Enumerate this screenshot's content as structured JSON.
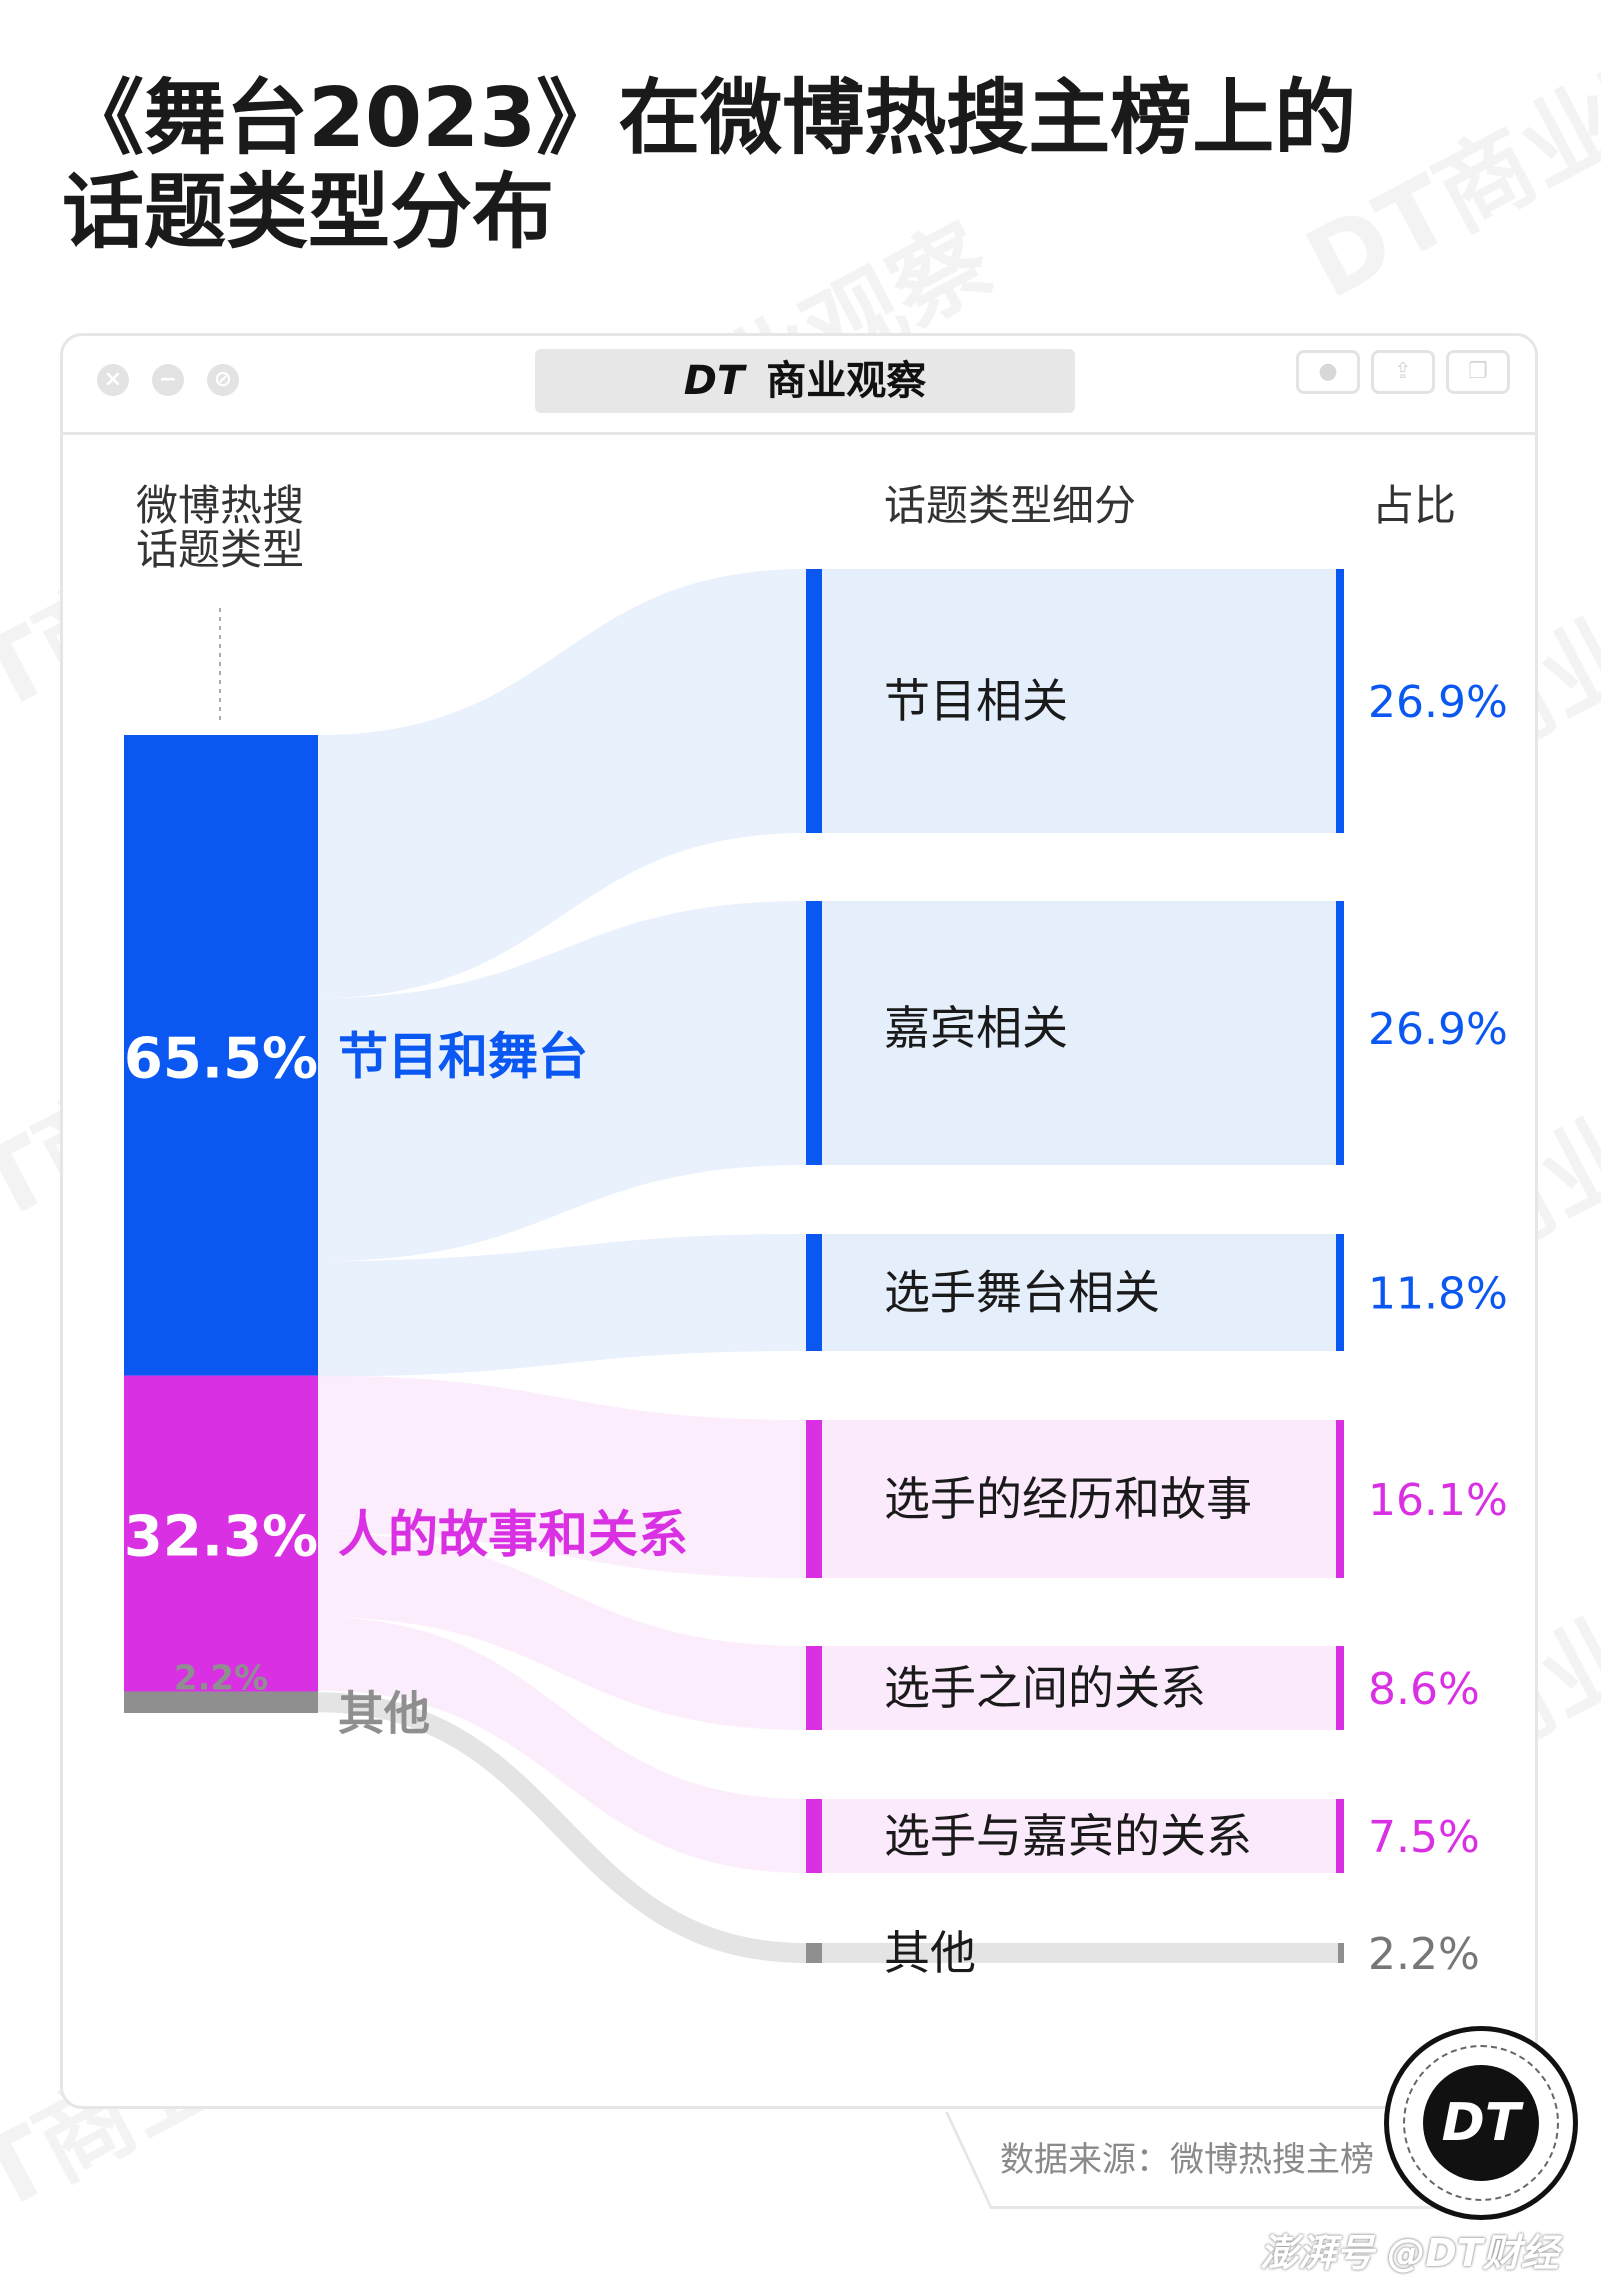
{
  "title": {
    "line1": "《舞台2023》在微博热搜主榜上的",
    "line2": "话题类型分布"
  },
  "brand": {
    "logo": "DT",
    "name": "商业观察"
  },
  "window_controls": [
    "close-icon",
    "minimize-icon",
    "maximize-icon"
  ],
  "toolbar_icons": [
    "record-icon",
    "share-icon",
    "window-icon"
  ],
  "watermark_text": "DT商业观察",
  "source": "数据来源：微博热搜主榜",
  "credit": "澎湃号 @DT财经",
  "logo_text": "DT",
  "colors": {
    "blue": "#0a57f2",
    "magenta": "#d930e3",
    "gray": "#8f8f8f",
    "blue_light": "#e5effc",
    "magenta_light": "#fbeafb",
    "gray_light": "#e4e4e4"
  },
  "chart_data": {
    "type": "sankey",
    "left_header": [
      "微博热搜",
      "话题类型"
    ],
    "middle_header": "话题类型细分",
    "right_header": "占比",
    "categories": [
      {
        "name": "节目和舞台",
        "value": 65.5,
        "value_label": "65.5%",
        "color": "blue"
      },
      {
        "name": "人的故事和关系",
        "value": 32.3,
        "value_label": "32.3%",
        "color": "magenta"
      },
      {
        "name": "其他",
        "value": 2.2,
        "value_label": "2.2%",
        "color": "gray"
      }
    ],
    "subcategories": [
      {
        "name": "节目相关",
        "value": 26.9,
        "value_label": "26.9%",
        "parent": "节目和舞台"
      },
      {
        "name": "嘉宾相关",
        "value": 26.9,
        "value_label": "26.9%",
        "parent": "节目和舞台"
      },
      {
        "name": "选手舞台相关",
        "value": 11.8,
        "value_label": "11.8%",
        "parent": "节目和舞台"
      },
      {
        "name": "选手的经历和故事",
        "value": 16.1,
        "value_label": "16.1%",
        "parent": "人的故事和关系"
      },
      {
        "name": "选手之间的关系",
        "value": 8.6,
        "value_label": "8.6%",
        "parent": "人的故事和关系"
      },
      {
        "name": "选手与嘉宾的关系",
        "value": 7.5,
        "value_label": "7.5%",
        "parent": "人的故事和关系"
      },
      {
        "name": "其他",
        "value": 2.2,
        "value_label": "2.2%",
        "parent": "其他"
      }
    ]
  }
}
